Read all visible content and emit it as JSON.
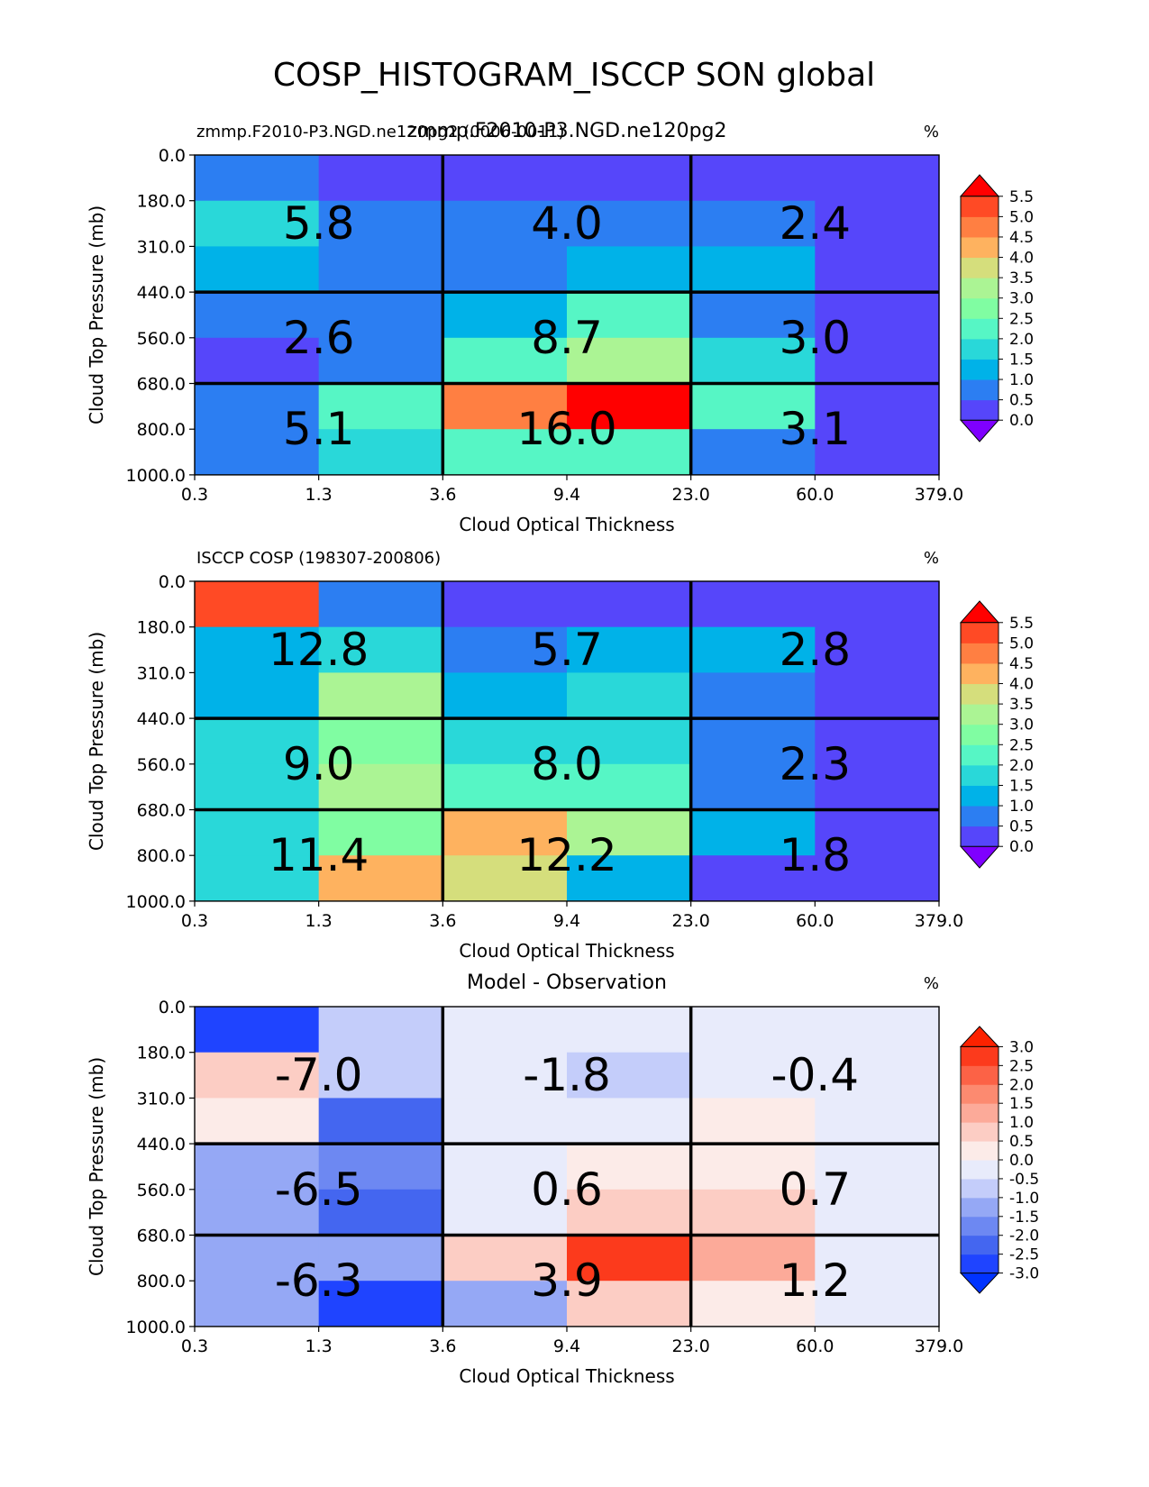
{
  "figure": {
    "title": "COSP_HISTOGRAM_ISCCP SON global"
  },
  "chart_data": [
    {
      "type": "heatmap",
      "title": "zmmp.F2010-P3.NGD.ne120pg2",
      "left_title": "zmmp.F2010-P3.NGD.ne120pg2 (0006-0011)",
      "units": "%",
      "xlabel": "Cloud Optical Thickness",
      "ylabel": "Cloud Top Pressure (mb)",
      "x_edges": [
        "0.3",
        "1.3",
        "3.6",
        "9.4",
        "23.0",
        "60.0",
        "379.0"
      ],
      "y_edges": [
        "0.0",
        "180.0",
        "310.0",
        "440.0",
        "560.0",
        "680.0",
        "800.0",
        "1000.0"
      ],
      "values": [
        [
          0.8,
          0.3,
          0.3,
          0.3,
          0.3,
          0.3
        ],
        [
          1.8,
          0.8,
          0.8,
          0.8,
          0.8,
          0.3
        ],
        [
          1.3,
          0.8,
          0.8,
          1.3,
          1.3,
          0.3
        ],
        [
          0.8,
          0.8,
          1.3,
          2.3,
          0.8,
          0.3
        ],
        [
          0.3,
          0.8,
          2.3,
          3.3,
          1.8,
          0.3
        ],
        [
          0.8,
          2.3,
          4.8,
          5.8,
          2.3,
          0.3
        ],
        [
          0.8,
          1.8,
          2.3,
          2.3,
          0.8,
          0.3
        ]
      ],
      "block_sums": [
        [
          "5.8",
          "4.0",
          "2.4"
        ],
        [
          "2.6",
          "8.7",
          "3.0"
        ],
        [
          "5.1",
          "16.0",
          "3.1"
        ]
      ],
      "colorbar": {
        "ticks": [
          "0.0",
          "0.5",
          "1.0",
          "1.5",
          "2.0",
          "2.5",
          "3.0",
          "3.5",
          "4.0",
          "4.5",
          "5.0",
          "5.5"
        ],
        "levels": [
          0,
          0.5,
          1,
          1.5,
          2,
          2.5,
          3,
          3.5,
          4,
          4.5,
          5,
          5.5
        ],
        "colors": [
          "#7f00ff",
          "#5646fa",
          "#2c7ef2",
          "#00b2e8",
          "#29d8d9",
          "#56f6c5",
          "#80fda2",
          "#abf494",
          "#d5de7c",
          "#feb25f",
          "#ff7f42",
          "#ff4a25",
          "#ff0000"
        ]
      }
    },
    {
      "type": "heatmap",
      "title": "",
      "left_title": "ISCCP COSP (198307-200806)",
      "units": "%",
      "xlabel": "Cloud Optical Thickness",
      "ylabel": "Cloud Top Pressure (mb)",
      "x_edges": [
        "0.3",
        "1.3",
        "3.6",
        "9.4",
        "23.0",
        "60.0",
        "379.0"
      ],
      "y_edges": [
        "0.0",
        "180.0",
        "310.0",
        "440.0",
        "560.0",
        "680.0",
        "800.0",
        "1000.0"
      ],
      "values": [
        [
          5.3,
          0.8,
          0.3,
          0.3,
          0.3,
          0.3
        ],
        [
          1.3,
          1.8,
          0.8,
          1.3,
          1.3,
          0.3
        ],
        [
          1.3,
          3.3,
          1.3,
          1.8,
          0.8,
          0.3
        ],
        [
          1.8,
          2.8,
          1.8,
          1.8,
          0.8,
          0.3
        ],
        [
          1.8,
          3.3,
          2.3,
          2.3,
          0.8,
          0.3
        ],
        [
          1.8,
          2.8,
          4.3,
          3.3,
          1.3,
          0.3
        ],
        [
          1.8,
          4.3,
          3.8,
          1.3,
          0.3,
          0.3
        ]
      ],
      "block_sums": [
        [
          "12.8",
          "5.7",
          "2.8"
        ],
        [
          "9.0",
          "8.0",
          "2.3"
        ],
        [
          "11.4",
          "12.2",
          "1.8"
        ]
      ],
      "colorbar": {
        "ticks": [
          "0.0",
          "0.5",
          "1.0",
          "1.5",
          "2.0",
          "2.5",
          "3.0",
          "3.5",
          "4.0",
          "4.5",
          "5.0",
          "5.5"
        ],
        "levels": [
          0,
          0.5,
          1,
          1.5,
          2,
          2.5,
          3,
          3.5,
          4,
          4.5,
          5,
          5.5
        ],
        "colors": [
          "#7f00ff",
          "#5646fa",
          "#2c7ef2",
          "#00b2e8",
          "#29d8d9",
          "#56f6c5",
          "#80fda2",
          "#abf494",
          "#d5de7c",
          "#feb25f",
          "#ff7f42",
          "#ff4a25",
          "#ff0000"
        ]
      }
    },
    {
      "type": "heatmap",
      "title": "Model - Observation",
      "left_title": "",
      "units": "%",
      "xlabel": "Cloud Optical Thickness",
      "ylabel": "Cloud Top Pressure (mb)",
      "x_edges": [
        "0.3",
        "1.3",
        "3.6",
        "9.4",
        "23.0",
        "60.0",
        "379.0"
      ],
      "y_edges": [
        "0.0",
        "180.0",
        "310.0",
        "440.0",
        "560.0",
        "680.0",
        "800.0",
        "1000.0"
      ],
      "values": [
        [
          -2.8,
          -0.8,
          -0.3,
          -0.3,
          -0.3,
          -0.3
        ],
        [
          0.8,
          -0.8,
          -0.3,
          -0.8,
          -0.3,
          -0.3
        ],
        [
          0.3,
          -2.3,
          -0.3,
          -0.3,
          0.3,
          -0.3
        ],
        [
          -1.3,
          -1.8,
          -0.3,
          0.3,
          0.3,
          -0.3
        ],
        [
          -1.3,
          -2.3,
          -0.3,
          0.8,
          0.8,
          -0.3
        ],
        [
          -1.3,
          -1.3,
          0.8,
          2.8,
          1.3,
          -0.3
        ],
        [
          -1.3,
          -2.8,
          -1.3,
          0.8,
          0.3,
          -0.3
        ]
      ],
      "block_sums": [
        [
          "-7.0",
          "-1.8",
          "-0.4"
        ],
        [
          "-6.5",
          "0.6",
          "0.7"
        ],
        [
          "-6.3",
          "3.9",
          "1.2"
        ]
      ],
      "colorbar": {
        "ticks": [
          "-3.0",
          "-2.5",
          "-2.0",
          "-1.5",
          "-1.0",
          "-0.5",
          "0.0",
          "0.5",
          "1.0",
          "1.5",
          "2.0",
          "2.5",
          "3.0"
        ],
        "levels": [
          -3,
          -2.5,
          -2,
          -1.5,
          -1,
          -0.5,
          0,
          0.5,
          1,
          1.5,
          2,
          2.5,
          3
        ],
        "colors": [
          "#0033ff",
          "#1f44ff",
          "#4466f0",
          "#6d88f2",
          "#95a8f5",
          "#c4cdfa",
          "#e8ebfb",
          "#fcebe8",
          "#fccdc4",
          "#fcaa99",
          "#fc8a70",
          "#fc6246",
          "#fc3a1c",
          "#fc2200"
        ]
      }
    }
  ]
}
